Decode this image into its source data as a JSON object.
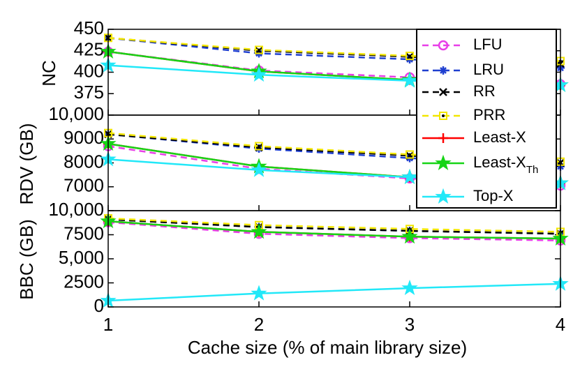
{
  "chart_data": [
    {
      "type": "line",
      "ylabel": "NC",
      "x": [
        1,
        2,
        3,
        4
      ],
      "xlim": [
        1,
        4
      ],
      "xticks": [
        1,
        2,
        3,
        4
      ],
      "ylim": [
        350,
        450
      ],
      "yticks": [
        375,
        400,
        425,
        450
      ],
      "legend": "upper right",
      "series": [
        {
          "name": "LFU",
          "color": "#e83ee8",
          "marker": "circle",
          "dash": true,
          "values": [
            424,
            402,
            394,
            386
          ]
        },
        {
          "name": "LRU",
          "color": "#1f3fd0",
          "marker": "asterisk",
          "dash": true,
          "values": [
            440,
            422,
            415,
            405
          ]
        },
        {
          "name": "RR",
          "color": "#000000",
          "marker": "x",
          "dash": true,
          "values": [
            440,
            425,
            418,
            410
          ]
        },
        {
          "name": "PRR",
          "color": "#f2e600",
          "marker": "square",
          "dash": true,
          "values": [
            440,
            426,
            419,
            413
          ]
        },
        {
          "name": "Least-X",
          "color": "#ff0000",
          "marker": "plus",
          "dash": false,
          "values": [
            424,
            401,
            391,
            385
          ]
        },
        {
          "name": "Least-X",
          "subscript": "Th",
          "color": "#16d416",
          "marker": "star",
          "dash": false,
          "values": [
            424,
            401,
            391,
            385
          ]
        },
        {
          "name": "Top-X",
          "color": "#22e8f8",
          "marker": "star",
          "dash": false,
          "values": [
            408,
            397,
            390,
            385
          ]
        }
      ]
    },
    {
      "type": "line",
      "ylabel": "RDV (GB)",
      "x": [
        1,
        2,
        3,
        4
      ],
      "xlim": [
        1,
        4
      ],
      "xticks": [
        1,
        2,
        3,
        4
      ],
      "ylim": [
        6000,
        10000
      ],
      "yticks": [
        7000,
        8000,
        9000,
        {
          "value": 10000,
          "label": "10,000"
        }
      ],
      "series": [
        {
          "values": [
            8700,
            7750,
            7350,
            7050
          ]
        },
        {
          "values": [
            9200,
            8600,
            8200,
            7850
          ]
        },
        {
          "values": [
            9200,
            8650,
            8300,
            8000
          ]
        },
        {
          "values": [
            9250,
            8700,
            8350,
            8050
          ]
        },
        {
          "values": [
            8800,
            7850,
            7400,
            7150
          ]
        },
        {
          "values": [
            8800,
            7850,
            7400,
            7150
          ]
        },
        {
          "values": [
            8150,
            7700,
            7400,
            7150
          ]
        }
      ]
    },
    {
      "type": "line",
      "ylabel": "BBC (GB)",
      "xlabel": "Cache size (% of main library size)",
      "x": [
        1,
        2,
        3,
        4
      ],
      "xlim": [
        1,
        4
      ],
      "xticks": [
        1,
        2,
        3,
        4
      ],
      "ylim": [
        0,
        10000
      ],
      "yticks": [
        0,
        2500,
        {
          "value": 5000,
          "label": "5,000"
        },
        7500,
        {
          "value": 10000,
          "label": "10,000"
        }
      ],
      "series": [
        {
          "values": [
            8800,
            7600,
            7150,
            6900
          ]
        },
        {
          "values": [
            9100,
            8300,
            7900,
            7600
          ]
        },
        {
          "values": [
            9100,
            8300,
            7900,
            7600
          ]
        },
        {
          "values": [
            9200,
            8500,
            8100,
            7800
          ]
        },
        {
          "values": [
            8900,
            7800,
            7300,
            7100
          ]
        },
        {
          "values": [
            8900,
            7800,
            7300,
            7100
          ]
        },
        {
          "values": [
            650,
            1400,
            1950,
            2400
          ]
        }
      ]
    }
  ]
}
